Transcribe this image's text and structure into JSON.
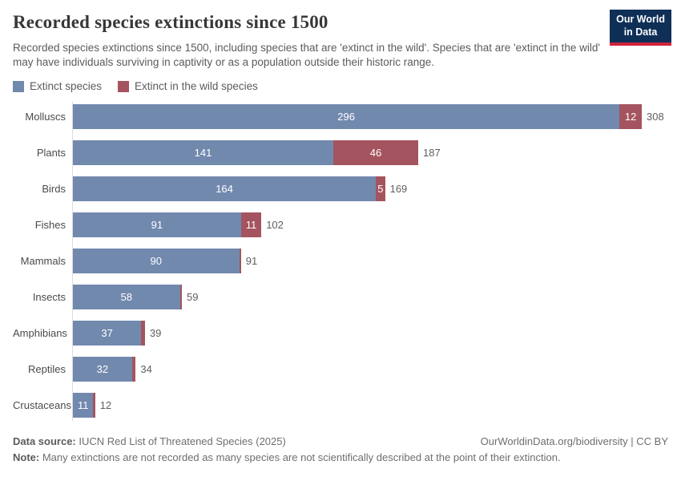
{
  "logo": {
    "line1": "Our World",
    "line2": "in Data"
  },
  "header": {
    "title": "Recorded species extinctions since 1500",
    "subtitle": "Recorded species extinctions since 1500, including species that are 'extinct in the wild'. Species that are 'extinct in the wild' may have individuals surviving in captivity or as a population outside their historic range."
  },
  "legend": [
    {
      "id": "extinct-species",
      "label": "Extinct species",
      "color": "#7289ae"
    },
    {
      "id": "extinct-in-the-wild-species",
      "label": "Extinct in the wild species",
      "color": "#a4545e"
    }
  ],
  "chart_data": {
    "type": "bar",
    "orientation": "horizontal",
    "stacked": true,
    "title": "Recorded species extinctions since 1500",
    "xlabel": "",
    "ylabel": "",
    "xmax": 308,
    "grid": false,
    "legend_position": "top",
    "categories": [
      "Molluscs",
      "Plants",
      "Birds",
      "Fishes",
      "Mammals",
      "Insects",
      "Amphibians",
      "Reptiles",
      "Crustaceans"
    ],
    "series": [
      {
        "name": "Extinct species",
        "color": "#7289ae",
        "values": [
          296,
          141,
          164,
          91,
          90,
          58,
          37,
          32,
          11
        ]
      },
      {
        "name": "Extinct in the wild species",
        "color": "#a4545e",
        "values": [
          12,
          46,
          5,
          11,
          1,
          1,
          2,
          2,
          1
        ]
      }
    ],
    "totals": [
      308,
      187,
      169,
      102,
      91,
      59,
      39,
      34,
      12
    ]
  },
  "footer": {
    "source_label": "Data source:",
    "source_text": " IUCN Red List of Threatened Species (2025)",
    "rights": "OurWorldinData.org/biodiversity | CC BY",
    "note_label": "Note:",
    "note_text": " Many extinctions are not recorded as many species are not scientifically described at the point of their extinction."
  }
}
